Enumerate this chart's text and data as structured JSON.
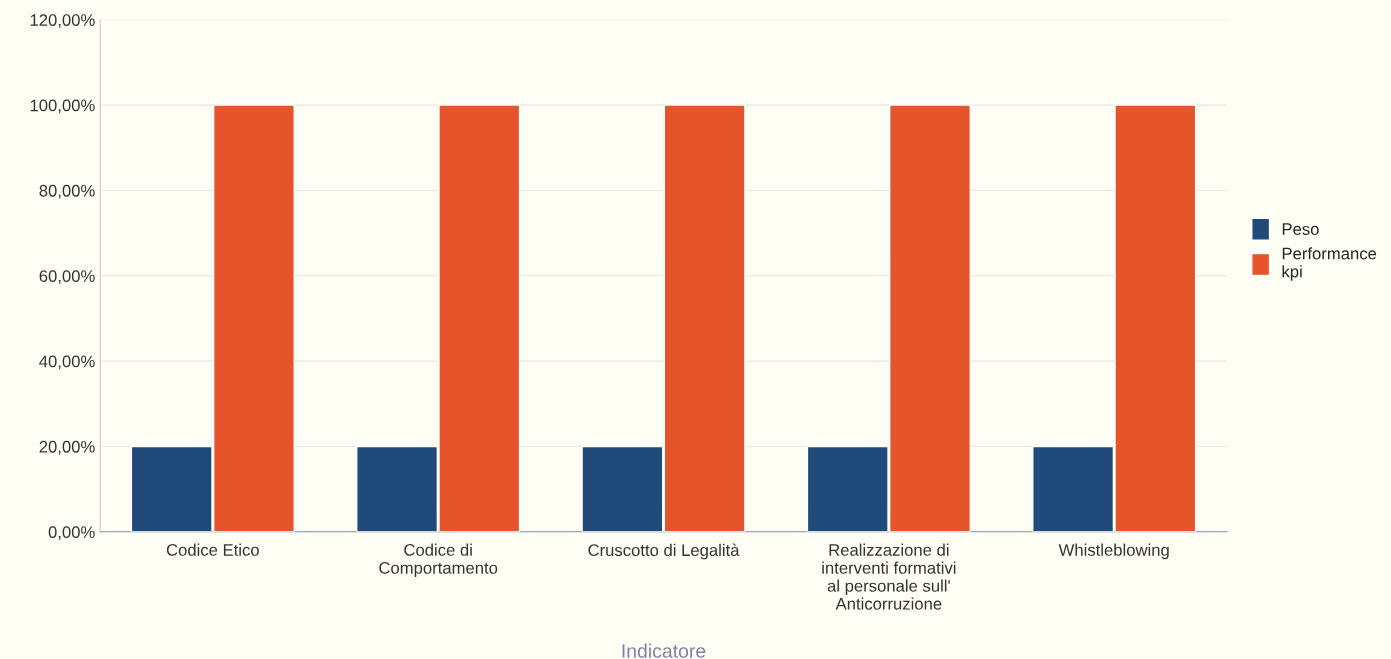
{
  "chart_data": {
    "type": "bar",
    "xlabel": "Indicatore",
    "categories": [
      "Codice Etico",
      "Codice di Comportamento",
      "Cruscotto di Legalità",
      "Realizzazione di interventi formativi al personale sull' Anticorruzione",
      "Whistleblowing"
    ],
    "series": [
      {
        "name": "Peso",
        "color": "#1f4a7a",
        "values": [
          20,
          20,
          20,
          20,
          20
        ]
      },
      {
        "name": "Performance kpi",
        "color": "#e5542b",
        "values": [
          100,
          100,
          100,
          100,
          100
        ]
      }
    ],
    "ylim": [
      0,
      120
    ],
    "yticks": [
      {
        "value": 0,
        "label": "0,00%"
      },
      {
        "value": 20,
        "label": "20,00%"
      },
      {
        "value": 40,
        "label": "40,00%"
      },
      {
        "value": 60,
        "label": "60,00%"
      },
      {
        "value": 80,
        "label": "80,00%"
      },
      {
        "value": 100,
        "label": "100,00%"
      },
      {
        "value": 120,
        "label": "120,00%"
      }
    ],
    "grid": "y",
    "legend": "right"
  }
}
